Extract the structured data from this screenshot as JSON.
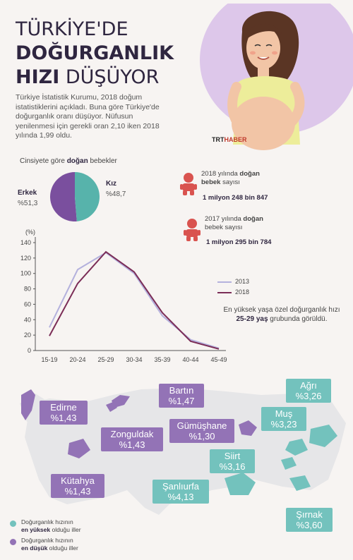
{
  "title": {
    "line1": "TÜRKİYE'DE",
    "line2": "DOĞURGANLIK",
    "line3_bold": "HIZI",
    "line3_light": " DÜŞÜYOR"
  },
  "intro": "Türkiye İstatistik Kurumu, 2018 doğum istatistiklerini açıkladı. Buna göre Türkiye'de doğurganlık oranı düşüyor. Nüfusun yenilenmesi için gerekli oran 2,10 iken 2018 yılında 1,99 oldu.",
  "logo": {
    "trt": "TRT",
    "haber": "HABER"
  },
  "pie": {
    "caption_pre": "Cinsiyete göre ",
    "caption_bold": "doğan",
    "caption_post": " bebekler",
    "male_label": "Erkek",
    "male_value": "%51,3",
    "female_label": "Kız",
    "female_value": "%48,7",
    "male_pct": 51.3,
    "female_pct": 48.7,
    "male_color": "#7a4f9e",
    "female_color": "#57b3ab"
  },
  "births": {
    "y2018_pre": "2018 yılında ",
    "y2018_bold": "doğan",
    "y2018_post1": "bebek",
    "y2018_post2": " sayısı",
    "y2018_value": "1 milyon 248 bin 847",
    "y2017_pre": "2017 yılında ",
    "y2017_bold": "doğan",
    "y2017_post1": "bebek",
    "y2017_post2": " sayısı",
    "y2017_value": "1 milyon 295 bin 784",
    "icon_color": "#d9534f"
  },
  "chart_data": {
    "type": "line",
    "ylabel": "(%)",
    "categories": [
      "15-19",
      "20-24",
      "25-29",
      "30-34",
      "35-39",
      "40-44",
      "45-49"
    ],
    "yticks": [
      0,
      20,
      40,
      60,
      80,
      100,
      120,
      140
    ],
    "ylim": [
      0,
      140
    ],
    "series": [
      {
        "name": "2013",
        "color": "#b4b1dd",
        "values": [
          30,
          105,
          127,
          100,
          45,
          14,
          3
        ]
      },
      {
        "name": "2018",
        "color": "#7b2d57",
        "values": [
          19,
          87,
          128,
          102,
          49,
          12,
          2
        ]
      }
    ],
    "note_pre": "En yüksek yaşa özel doğurganlık hızı ",
    "note_bold": "25-29 yaş",
    "note_post": " grubunda görüldü."
  },
  "map": {
    "low": [
      {
        "name": "Edirne",
        "value": "%1,43"
      },
      {
        "name": "Bartın",
        "value": "%1,47"
      },
      {
        "name": "Zonguldak",
        "value": "%1,43"
      },
      {
        "name": "Gümüşhane",
        "value": "%1,30"
      },
      {
        "name": "Kütahya",
        "value": "%1,43"
      }
    ],
    "high": [
      {
        "name": "Ağrı",
        "value": "%3,26"
      },
      {
        "name": "Muş",
        "value": "%3,23"
      },
      {
        "name": "Siirt",
        "value": "%3,16"
      },
      {
        "name": "Şanlıurfa",
        "value": "%4,13"
      },
      {
        "name": "Şırnak",
        "value": "%3,60"
      }
    ],
    "low_color": "#9373b6",
    "high_color": "#73c2bd",
    "legend_high_1": "Doğurganlık hızının",
    "legend_high_bold": "en yüksek",
    "legend_high_2": " olduğu iller",
    "legend_low_1": "Doğurganlık hızının",
    "legend_low_bold": "en düşük",
    "legend_low_2": " olduğu iller"
  }
}
